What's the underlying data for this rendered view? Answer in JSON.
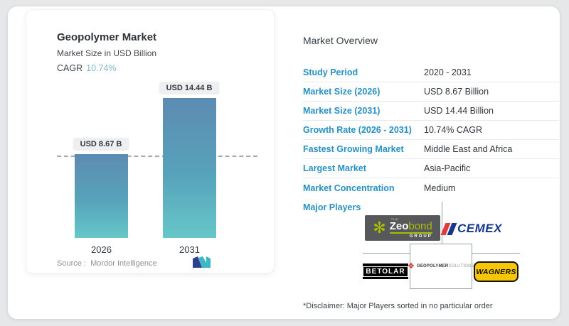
{
  "chart_card": {
    "title": "Geopolymer Market",
    "subtitle": "Market Size in USD Billion",
    "cagr_label": "CAGR",
    "cagr_value": "10.74%",
    "source_label": "Source :",
    "source_value": "Mordor Intelligence"
  },
  "chart_data": {
    "type": "bar",
    "title": "Geopolymer Market",
    "subtitle": "Market Size in USD Billion",
    "unit": "USD Billion",
    "categories": [
      "2026",
      "2031"
    ],
    "values": [
      8.67,
      14.44
    ],
    "bar_labels": [
      "USD 8.67 B",
      "USD 14.44 B"
    ],
    "cagr_percent": 10.74,
    "reference_line": 8.67,
    "ylim": [
      0,
      15.5
    ],
    "grid": false,
    "legend": false,
    "bar_gradient_top": "#5d8bb2",
    "bar_gradient_bottom": "#66c7c9"
  },
  "overview": {
    "title": "Market Overview",
    "rows": [
      {
        "label": "Study Period",
        "value": "2020 - 2031"
      },
      {
        "label": "Market Size (2026)",
        "value": "USD 8.67 Billion"
      },
      {
        "label": "Market Size (2031)",
        "value": "USD 14.44 Billion"
      },
      {
        "label": "Growth Rate (2026 - 2031)",
        "value": "10.74% CAGR"
      },
      {
        "label": "Fastest Growing Market",
        "value": "Middle East and Africa"
      },
      {
        "label": "Largest Market",
        "value": "Asia-Pacific"
      },
      {
        "label": "Market Concentration",
        "value": "Medium"
      }
    ],
    "major_players_label": "Major Players",
    "major_players": [
      "Zeobond Group",
      "CEMEX",
      "Betolar",
      "Geopolymer Solutions",
      "Wagners"
    ],
    "disclaimer": "*Disclaimer: Major Players sorted in no particular order"
  },
  "logos": {
    "zeobond": {
      "the": "THE",
      "zeo": "Zeo",
      "bond": "bond",
      "group": "GROUP"
    },
    "cemex": {
      "text": "CEMEX"
    },
    "betolar": {
      "text": "BETOLAR"
    },
    "geopolymer_solutions": {
      "word1": "GEOPOLYMER",
      "word2": "SOLUTIONS"
    },
    "wagners": {
      "text": "WAGNERS"
    }
  },
  "colors": {
    "accent_blue_label": "#2791c3",
    "cagr_teal": "#84b8c8",
    "badge_bg": "#edeff1",
    "bar_top": "#5d8bb2",
    "bar_bottom": "#66c7c9",
    "cemex_blue": "#16388c",
    "cemex_red": "#e23b3b",
    "zeobond_lime": "#a9be00",
    "wagners_yellow": "#f7c600"
  }
}
